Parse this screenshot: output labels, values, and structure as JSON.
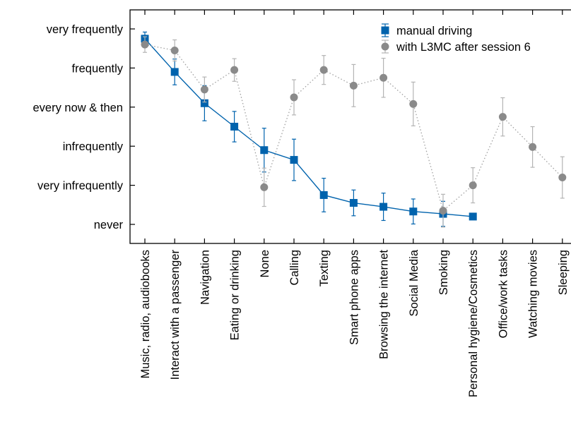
{
  "chart_data": {
    "type": "line",
    "title": "",
    "xlabel": "",
    "ylabel": "",
    "categories": [
      "Music, radio, audiobooks",
      "Interact with a passenger",
      "Navigation",
      "Eating or drinking",
      "None",
      "Calling",
      "Texting",
      "Smart phone apps",
      "Browsing the internet",
      "Social Media",
      "Smoking",
      "Personal hygiene/Cosmetics",
      "Office/work tasks",
      "Watching movies",
      "Sleeping"
    ],
    "y_tick_labels": [
      "never",
      "very infrequently",
      "infrequently",
      "every now & then",
      "frequently",
      "very frequently"
    ],
    "ylim": [
      -0.45,
      5.05
    ],
    "grid": false,
    "legend_position": "top-right",
    "series": [
      {
        "name": "manual driving",
        "color": "#0063ad",
        "marker": "square",
        "line_style": "solid",
        "values": [
          4.75,
          3.9,
          3.1,
          2.5,
          1.9,
          1.65,
          0.75,
          0.55,
          0.45,
          0.33,
          0.27,
          0.2,
          null,
          null,
          null
        ],
        "err_low": [
          4.58,
          3.57,
          2.65,
          2.11,
          1.34,
          1.12,
          0.32,
          0.22,
          0.1,
          0.01,
          -0.05,
          null,
          null,
          null,
          null
        ],
        "err_high": [
          4.92,
          4.23,
          3.55,
          2.89,
          2.46,
          2.18,
          1.18,
          0.88,
          0.8,
          0.65,
          0.59,
          null,
          null,
          null,
          null
        ]
      },
      {
        "name": "with L3MC after session 6",
        "color": "#8a8a8a",
        "marker": "circle",
        "line_style": "dotted",
        "values": [
          4.6,
          4.45,
          3.45,
          3.95,
          0.95,
          3.25,
          3.95,
          3.55,
          3.75,
          3.08,
          0.35,
          1.0,
          2.75,
          1.98,
          1.2
        ],
        "err_low": [
          4.4,
          4.18,
          3.13,
          3.66,
          0.46,
          2.8,
          3.58,
          3.01,
          3.25,
          2.52,
          -0.07,
          0.55,
          2.26,
          1.46,
          0.67
        ],
        "err_high": [
          4.8,
          4.72,
          3.77,
          4.24,
          1.44,
          3.7,
          4.32,
          4.09,
          4.25,
          3.64,
          0.77,
          1.45,
          3.24,
          2.5,
          1.73
        ]
      }
    ]
  }
}
